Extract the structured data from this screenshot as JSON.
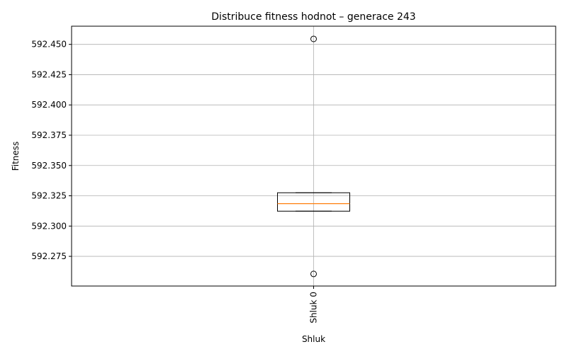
{
  "chart_data": {
    "type": "box",
    "title": "Distribuce fitness hodnot – generace 243",
    "xlabel": "Shluk",
    "ylabel": "Fitness",
    "ylim": [
      592.2505,
      592.465
    ],
    "yticks": [
      592.275,
      592.3,
      592.325,
      592.35,
      592.375,
      592.4,
      592.425,
      592.45
    ],
    "ytick_labels": [
      "592.275",
      "592.300",
      "592.325",
      "592.350",
      "592.375",
      "592.400",
      "592.425",
      "592.450"
    ],
    "grid": true,
    "categories": [
      "Shluk 0"
    ],
    "boxes": [
      {
        "category": "Shluk 0",
        "whisker_low": 592.3123,
        "q1": 592.3123,
        "median": 592.3185,
        "q3": 592.3275,
        "whisker_high": 592.3275,
        "outliers": [
          592.4545,
          592.2605
        ]
      }
    ],
    "colors": {
      "box": "#000000",
      "median": "#ff7f0e",
      "grid": "#b0b0b0"
    }
  }
}
